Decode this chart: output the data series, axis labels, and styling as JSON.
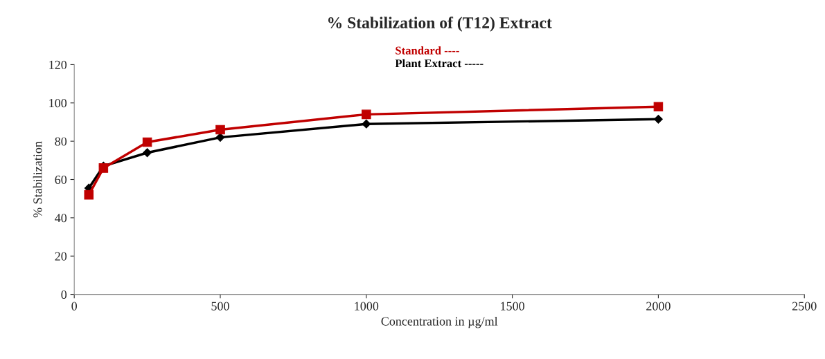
{
  "chart_data": {
    "type": "line",
    "title": "% Stabilization of (T12) Extract",
    "xlabel": "Concentration in µg/ml",
    "ylabel": "% Stabilization",
    "x": [
      50,
      100,
      250,
      500,
      1000,
      2000
    ],
    "series": [
      {
        "name": "Standard ----",
        "color": "#c00000",
        "marker": "square",
        "values": [
          52,
          66,
          79.5,
          86,
          94,
          98
        ]
      },
      {
        "name": "Plant Extract -----",
        "color": "#000000",
        "marker": "diamond",
        "values": [
          55.5,
          67,
          74,
          82,
          89,
          91.5
        ]
      }
    ],
    "xlim": [
      0,
      2500
    ],
    "xticks": [
      0,
      500,
      1000,
      1500,
      2000,
      2500
    ],
    "ylim": [
      0,
      120
    ],
    "yticks": [
      0,
      20,
      40,
      60,
      80,
      100,
      120
    ],
    "grid": false,
    "legend": "top",
    "line_style": "solid"
  }
}
